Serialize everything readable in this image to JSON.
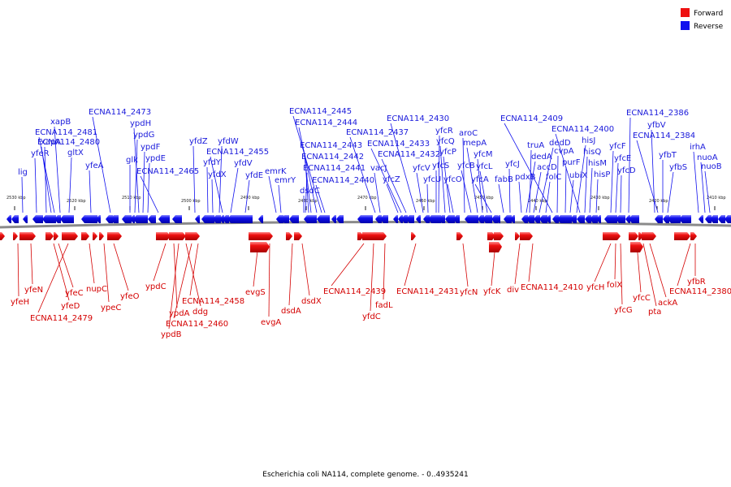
{
  "caption": "Escherichia coli NA114, complete genome. - 0..4935241",
  "legend": [
    {
      "label": "Forward",
      "color": "#ee1111"
    },
    {
      "label": "Reverse",
      "color": "#1111ee"
    }
  ],
  "ticks": [
    "2530 kbp",
    "2520 kbp",
    "2510 kbp",
    "2500 kbp",
    "2490 kbp",
    "2480 kbp",
    "2470 kbp",
    "2460 kbp",
    "2450 kbp",
    "2440 kbp",
    "2430 kbp",
    "2420 kbp",
    "2410 kbp"
  ],
  "reverse_genes": [
    "lig",
    "yfeR",
    "xapA",
    "ECNA114_2480",
    "ECNA114_2481",
    "xapB",
    "gltX",
    "yfeA",
    "ECNA114_2473",
    "glk",
    "ypdG",
    "ypdH",
    "ypdF",
    "ypdE",
    "ECNA114_2465",
    "yfdZ",
    "yfdY",
    "yfdX",
    "yfdW",
    "ECNA114_2455",
    "yfdV",
    "yfdE",
    "emrK",
    "emrY",
    "dsdC",
    "ECNA114_2441",
    "ECNA114_2442",
    "ECNA114_2443",
    "ECNA114_2444",
    "ECNA114_2445",
    "ECNA114_2440",
    "ECNA114_2437",
    "vacJ",
    "yfcZ",
    "ECNA114_2433",
    "ECNA114_2432",
    "ECNA114_2430",
    "yfcV",
    "yfcU",
    "yfcS",
    "yfcR",
    "yfcQ",
    "yfcP",
    "yfcO",
    "aroC",
    "yfcB",
    "mepA",
    "yfcM",
    "yfcL",
    "yfcA",
    "fabB",
    "yfcJ",
    "pdxB",
    "dedA",
    "truA",
    "accD",
    "dedD",
    "folC",
    "ECNA114_2409",
    "cvpA",
    "purF",
    "ubiX",
    "hisJ",
    "ECNA114_2400",
    "hisQ",
    "hisM",
    "hisP",
    "yfcF",
    "yfcE",
    "yfcD",
    "ECNA114_2386",
    "yfbV",
    "ECNA114_2384",
    "yfbT",
    "yfbS",
    "irhA",
    "nuoA",
    "nuoB"
  ],
  "forward_genes": [
    "yfeH",
    "yfeN",
    "yfeD",
    "yfeC",
    "ECNA114_2479",
    "nupC",
    "ypeC",
    "yfeO",
    "ypdC",
    "ypdA",
    "ypdB",
    "ddg",
    "ECNA114_2460",
    "ECNA114_2458",
    "evgS",
    "evgA",
    "dsdA",
    "dsdX",
    "ECNA114_2439",
    "yfdC",
    "fadL",
    "ECNA114_2431",
    "yfcN",
    "yfcK",
    "div",
    "ECNA114_2410",
    "yfcH",
    "folX",
    "yfcG",
    "yfcC",
    "pta",
    "ackA",
    "ECNA114_2380",
    "yfbR"
  ],
  "colors": {
    "forward": "#ee1111",
    "reverse": "#1111ee",
    "backbone": "#888888"
  }
}
